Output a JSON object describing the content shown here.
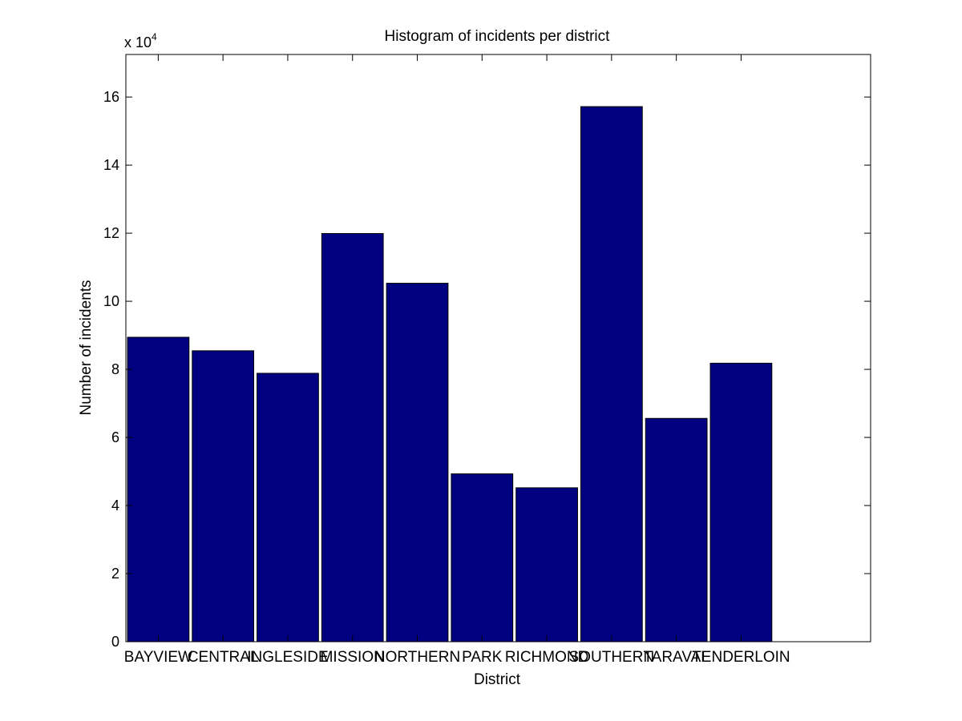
{
  "chart_data": {
    "type": "bar",
    "title": "Histogram of incidents per district",
    "xlabel": "District",
    "ylabel": "Number of incidents",
    "y_scale_base": "x 10",
    "y_scale_exponent": "4",
    "categories": [
      "BAYVIEW",
      "CENTRAL",
      "INGLESIDE",
      "MISSION",
      "NORTHERN",
      "PARK",
      "RICHMOND",
      "SOUTHERN",
      "TARAVAL",
      "TENDERLOIN"
    ],
    "values": [
      89431,
      85460,
      78845,
      119908,
      105296,
      49313,
      45209,
      157182,
      65596,
      81809
    ],
    "ylim": [
      0,
      172500
    ],
    "xlim": [
      0.5,
      12
    ],
    "y_ticks": [
      0,
      20000,
      40000,
      60000,
      80000,
      100000,
      120000,
      140000,
      160000
    ],
    "y_tick_labels": [
      "0",
      "2",
      "4",
      "6",
      "8",
      "10",
      "12",
      "14",
      "16"
    ],
    "bar_color": "#000080",
    "grid": false,
    "legend": "none"
  }
}
